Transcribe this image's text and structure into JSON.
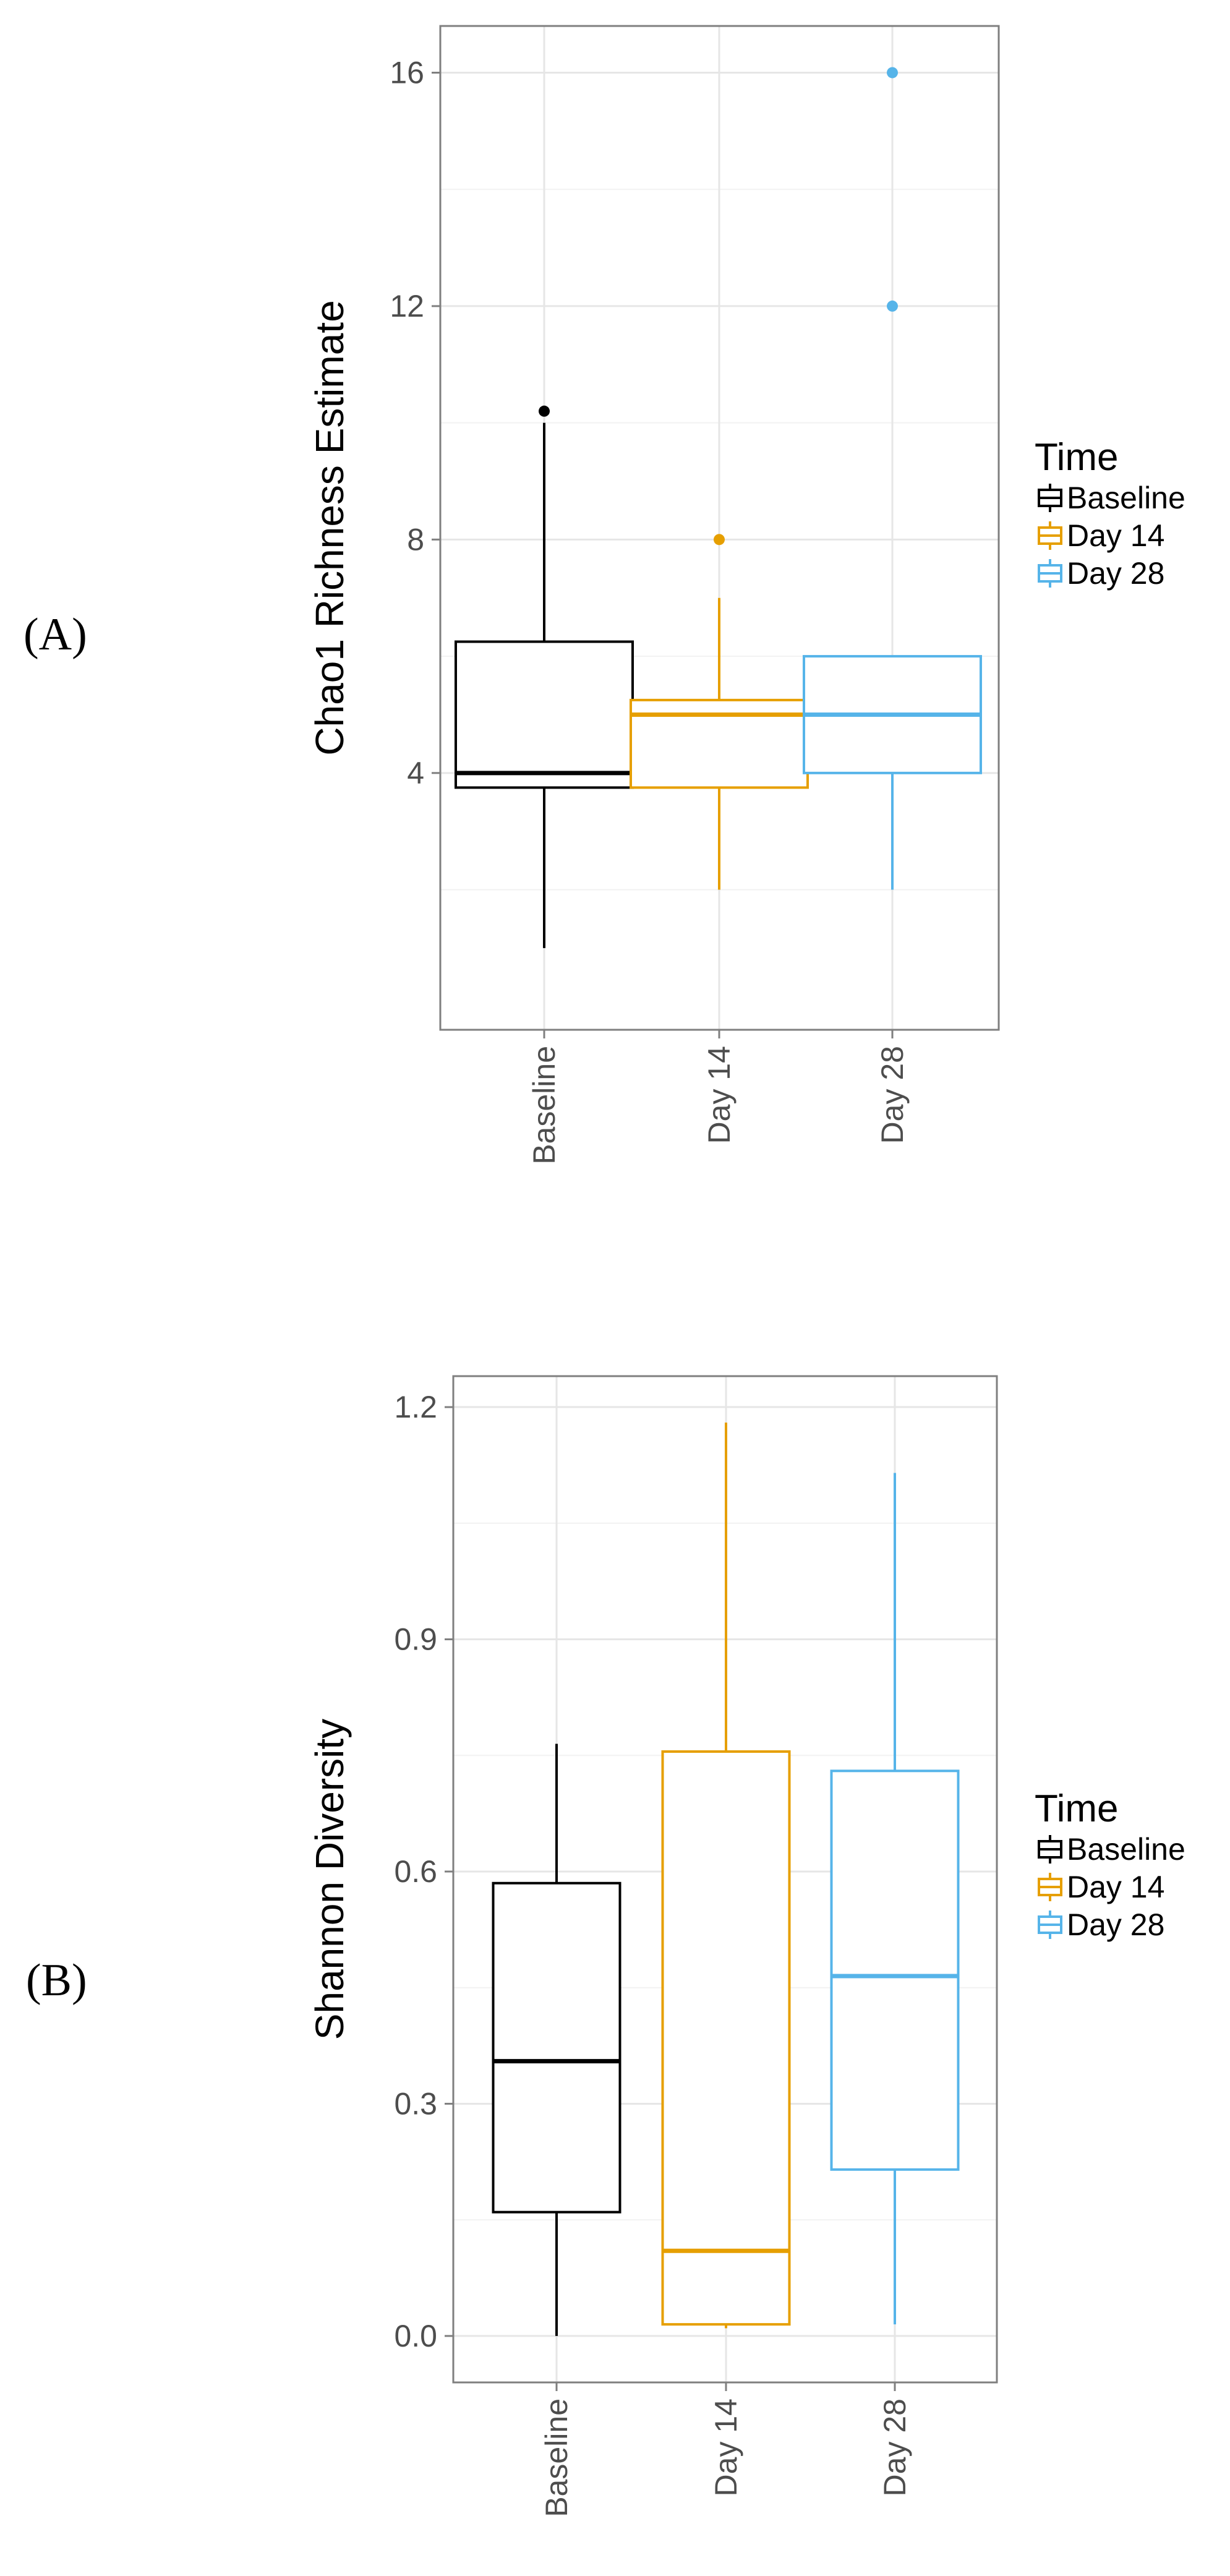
{
  "panel_labels": [
    "(A)",
    "(B)"
  ],
  "colors": {
    "Baseline": "#000000",
    "Day 14": "#E69F00",
    "Day 28": "#56B4E9"
  },
  "chart_data": [
    {
      "type": "box",
      "panel": "(A)",
      "title": "",
      "xlabel": "",
      "ylabel": "Chao1 Richness Estimate",
      "ylim": [
        -0.4,
        16.8
      ],
      "yticks": [
        4,
        8,
        12,
        16
      ],
      "ytick_labels": [
        "4",
        "8",
        "12",
        "16"
      ],
      "grid": true,
      "categories": [
        "Baseline",
        "Day 14",
        "Day 28"
      ],
      "boxes": [
        {
          "name": "Baseline",
          "min": 1,
          "q1": 3.75,
          "median": 4,
          "q3": 6.25,
          "max": 10,
          "outliers": [
            10.2
          ]
        },
        {
          "name": "Day 14",
          "min": 2,
          "q1": 3.75,
          "median": 5,
          "q3": 5.25,
          "max": 7,
          "outliers": [
            8
          ]
        },
        {
          "name": "Day 28",
          "min": 2,
          "q1": 4,
          "median": 5,
          "q3": 6,
          "max": 6,
          "outliers": [
            12,
            16
          ]
        }
      ],
      "legend": {
        "title": "Time",
        "entries": [
          "Baseline",
          "Day 14",
          "Day 28"
        ],
        "position": "right"
      }
    },
    {
      "type": "box",
      "panel": "(B)",
      "title": "",
      "xlabel": "",
      "ylabel": "Shannon Diversity",
      "ylim": [
        -0.06,
        1.24
      ],
      "yticks": [
        0,
        0.3,
        0.6,
        0.9,
        1.2
      ],
      "ytick_labels": [
        "0.0",
        "0.3",
        "0.6",
        "0.9",
        "1.2"
      ],
      "grid": true,
      "categories": [
        "Baseline",
        "Day 14",
        "Day 28"
      ],
      "boxes": [
        {
          "name": "Baseline",
          "min": 0.0,
          "q1": 0.16,
          "median": 0.355,
          "q3": 0.585,
          "max": 0.765,
          "outliers": []
        },
        {
          "name": "Day 14",
          "min": 0.01,
          "q1": 0.015,
          "median": 0.11,
          "q3": 0.755,
          "max": 1.18,
          "outliers": []
        },
        {
          "name": "Day 28",
          "min": 0.015,
          "q1": 0.215,
          "median": 0.465,
          "q3": 0.73,
          "max": 1.115,
          "outliers": []
        }
      ],
      "legend": {
        "title": "Time",
        "entries": [
          "Baseline",
          "Day 14",
          "Day 28"
        ],
        "position": "right"
      }
    }
  ]
}
